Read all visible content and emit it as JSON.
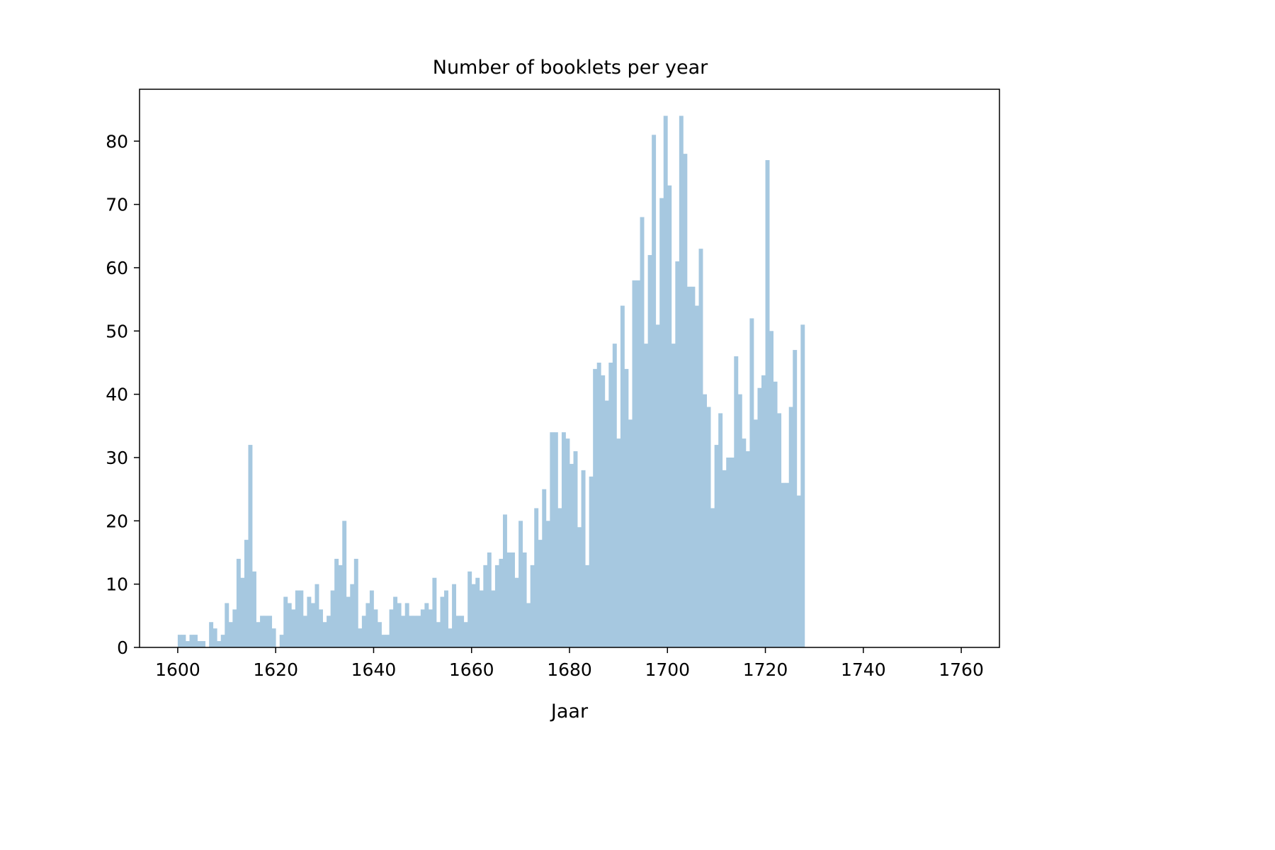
{
  "chart_data": {
    "type": "bar",
    "title": "Number of booklets per year",
    "xlabel": "Jaar",
    "ylabel": "",
    "xlim": [
      1592.2,
      1767.8
    ],
    "ylim": [
      0,
      88.2
    ],
    "xticks": [
      1600,
      1620,
      1640,
      1660,
      1680,
      1700,
      1720,
      1740,
      1760
    ],
    "yticks": [
      0,
      10,
      20,
      30,
      40,
      50,
      60,
      70,
      80
    ],
    "bin_width": 0.8,
    "x_start": 1600,
    "color": "#a6c8e0",
    "grid": false,
    "legend": "none",
    "values": [
      2,
      2,
      1,
      2,
      2,
      1,
      1,
      0,
      4,
      3,
      1,
      2,
      7,
      4,
      6,
      14,
      11,
      17,
      32,
      12,
      4,
      5,
      5,
      5,
      3,
      0,
      2,
      8,
      7,
      6,
      9,
      9,
      5,
      8,
      7,
      10,
      6,
      4,
      5,
      9,
      14,
      13,
      20,
      8,
      10,
      14,
      3,
      5,
      7,
      9,
      6,
      4,
      2,
      2,
      6,
      8,
      7,
      5,
      7,
      5,
      5,
      5,
      6,
      7,
      6,
      11,
      4,
      8,
      9,
      3,
      10,
      5,
      5,
      4,
      12,
      10,
      11,
      9,
      13,
      15,
      9,
      13,
      14,
      21,
      15,
      15,
      11,
      20,
      15,
      7,
      13,
      22,
      17,
      25,
      20,
      34,
      34,
      22,
      34,
      33,
      29,
      31,
      19,
      28,
      13,
      27,
      44,
      45,
      43,
      39,
      45,
      48,
      33,
      54,
      44,
      36,
      58,
      58,
      68,
      48,
      62,
      81,
      51,
      71,
      84,
      73,
      48,
      61,
      84,
      78,
      57,
      57,
      54,
      63,
      40,
      38,
      22,
      32,
      37,
      28,
      30,
      30,
      46,
      40,
      33,
      31,
      52,
      36,
      41,
      43,
      77,
      50,
      42,
      37,
      26,
      26,
      38,
      47,
      24,
      51
    ]
  }
}
